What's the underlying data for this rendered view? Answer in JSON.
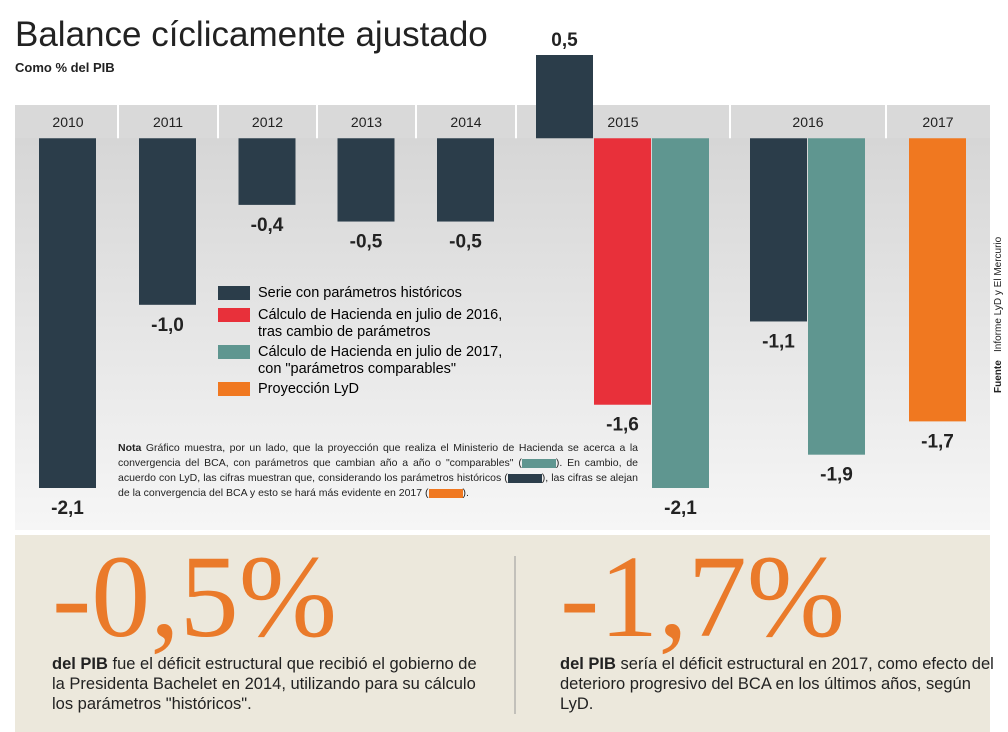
{
  "chart_data": {
    "type": "bar",
    "title": "Balance cíclicamente ajustado",
    "subtitle": "Como % del PIB",
    "categories": [
      "2010",
      "2011",
      "2012",
      "2013",
      "2014",
      "2015",
      "2016",
      "2017"
    ],
    "series": [
      {
        "name": "Serie con parámetros históricos",
        "color": "#2b3d4a",
        "values": [
          -2.1,
          -1.0,
          -0.4,
          -0.5,
          -0.5,
          0.5,
          -1.1,
          null
        ],
        "value_labels": [
          "-2,1",
          "-1,0",
          "-0,4",
          "-0,5",
          "-0,5",
          "0,5",
          "-1,1",
          null
        ]
      },
      {
        "name": "Cálculo de Hacienda en julio de 2016,\ntras cambio de parámetros",
        "color": "#e8303a",
        "values": [
          null,
          null,
          null,
          null,
          null,
          -1.6,
          null,
          null
        ],
        "value_labels": [
          null,
          null,
          null,
          null,
          null,
          "-1,6",
          null,
          null
        ]
      },
      {
        "name": "Cálculo de Hacienda en julio de 2017,\ncon \"parámetros comparables\"",
        "color": "#5f9690",
        "values": [
          null,
          null,
          null,
          null,
          null,
          -2.1,
          -1.9,
          null
        ],
        "value_labels": [
          null,
          null,
          null,
          null,
          null,
          "-2,1",
          "-1,9",
          null
        ]
      },
      {
        "name": "Proyección LyD",
        "color": "#f07820",
        "values": [
          null,
          null,
          null,
          null,
          null,
          null,
          null,
          -1.7
        ],
        "value_labels": [
          null,
          null,
          null,
          null,
          null,
          null,
          null,
          "-1,7"
        ]
      }
    ],
    "ylim": [
      -2.1,
      0.5
    ],
    "note": {
      "label": "Nota",
      "parts": [
        "Gráfico muestra, por un lado, que la proyección que realiza el Ministerio de Hacienda se acerca a la convergencia del BCA, con parámetros que cambian año a año o \"comparables\" (",
        "). En cambio, de acuerdo con LyD, las cifras muestran que, considerando los parámetros históricos (",
        "), las cifras se alejan de la convergencia del BCA y esto se hará más evidente en 2017 (",
        ")."
      ]
    }
  },
  "source": {
    "label": "Fuente",
    "text": "Informe LyD y El Mercurio"
  },
  "highlights": [
    {
      "figure": "-0,5%",
      "bold": "del PIB",
      "text": " fue el déficit estructural que recibió el gobierno de la Presidenta Bachelet en 2014, utilizando para su cálculo los parámetros \"históricos\"."
    },
    {
      "figure": "-1,7%",
      "bold": "del PIB",
      "text": " sería el déficit estructural en 2017, como efecto del deterioro progresivo del BCA en los últimos años, según LyD."
    }
  ]
}
